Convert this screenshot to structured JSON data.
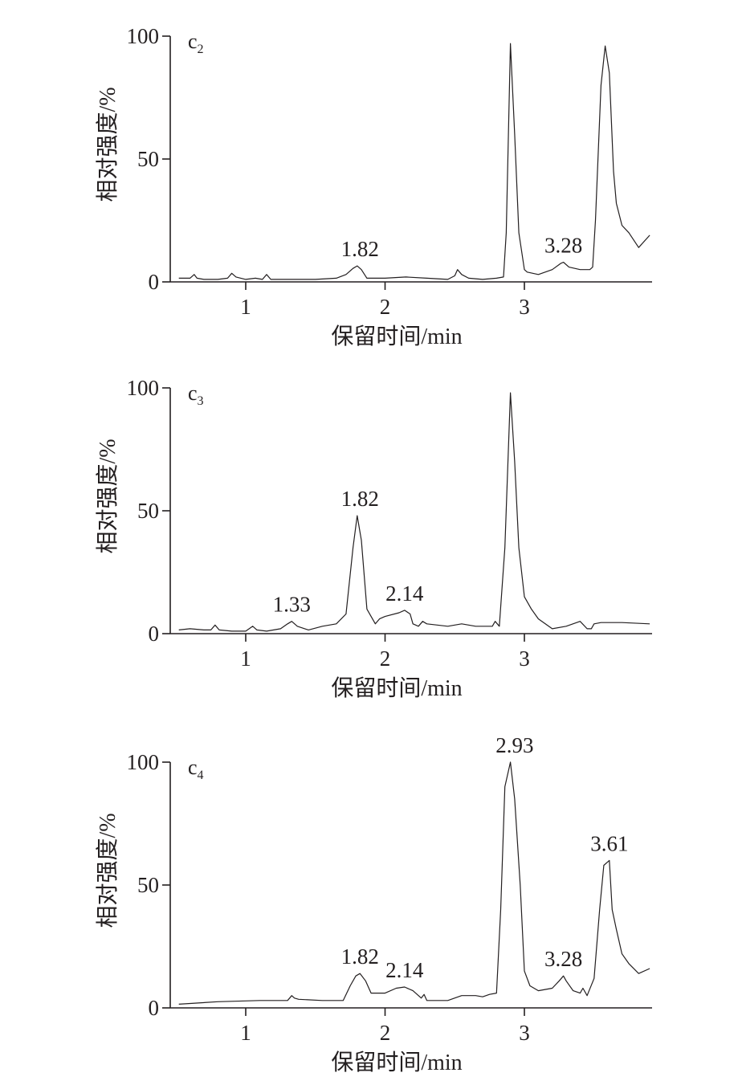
{
  "chart_data": [
    {
      "type": "line",
      "panel": "c",
      "panel_sub": "2",
      "xlabel": "保留时间/min",
      "ylabel": "相对强度/%",
      "xticks": [
        1,
        2,
        3
      ],
      "yticks": [
        0,
        50,
        100
      ],
      "xlim": [
        0.5,
        3.9
      ],
      "ylim": [
        0,
        100
      ],
      "peak_labels": [
        {
          "text": "1.82",
          "x": 1.82,
          "y": 6.5
        },
        {
          "text": "3.28",
          "x": 3.28,
          "y": 8
        }
      ],
      "series": [
        {
          "x": [
            0.52,
            0.6,
            0.63,
            0.65,
            0.7,
            0.8,
            0.87,
            0.9,
            0.93,
            1.0,
            1.07,
            1.12,
            1.15,
            1.18,
            1.3,
            1.5,
            1.65,
            1.72,
            1.77,
            1.8,
            1.83,
            1.87,
            2.0,
            2.15,
            2.3,
            2.45,
            2.5,
            2.52,
            2.55,
            2.6,
            2.7,
            2.8,
            2.85,
            2.87,
            2.9,
            2.93,
            2.96,
            3.0,
            3.02,
            3.1,
            3.2,
            3.26,
            3.28,
            3.32,
            3.4,
            3.47,
            3.49,
            3.51,
            3.55,
            3.58,
            3.61,
            3.64,
            3.66,
            3.7,
            3.75,
            3.82,
            3.9
          ],
          "y": [
            1.5,
            1.5,
            3,
            1.5,
            1,
            1,
            1.5,
            3.5,
            2,
            1,
            1.5,
            1,
            3,
            1,
            1,
            1,
            1.5,
            3,
            5.5,
            6.5,
            5,
            1.5,
            1.5,
            2,
            1.5,
            1,
            2.5,
            5,
            3,
            1.5,
            1,
            1.5,
            2,
            20,
            97,
            60,
            20,
            5,
            4,
            3,
            5,
            7.5,
            8,
            6,
            5,
            5,
            6,
            25,
            80,
            96,
            85,
            45,
            32,
            23,
            20,
            14,
            19
          ]
        }
      ]
    },
    {
      "type": "line",
      "panel": "c",
      "panel_sub": "3",
      "xlabel": "保留时间/min",
      "ylabel": "相对强度/%",
      "xticks": [
        1,
        2,
        3
      ],
      "yticks": [
        0,
        50,
        100
      ],
      "xlim": [
        0.5,
        3.9
      ],
      "ylim": [
        0,
        100
      ],
      "peak_labels": [
        {
          "text": "1.33",
          "x": 1.33,
          "y": 5
        },
        {
          "text": "1.82",
          "x": 1.82,
          "y": 48
        },
        {
          "text": "2.14",
          "x": 2.14,
          "y": 9.5
        }
      ],
      "series": [
        {
          "x": [
            0.52,
            0.6,
            0.7,
            0.75,
            0.78,
            0.81,
            0.9,
            1.0,
            1.05,
            1.08,
            1.15,
            1.25,
            1.3,
            1.33,
            1.37,
            1.45,
            1.55,
            1.65,
            1.72,
            1.77,
            1.8,
            1.83,
            1.87,
            1.9,
            1.93,
            1.96,
            2.0,
            2.1,
            2.14,
            2.18,
            2.2,
            2.24,
            2.27,
            2.3,
            2.45,
            2.55,
            2.65,
            2.77,
            2.79,
            2.82,
            2.86,
            2.9,
            2.93,
            2.96,
            3.0,
            3.05,
            3.1,
            3.2,
            3.3,
            3.4,
            3.45,
            3.48,
            3.5,
            3.55,
            3.7,
            3.9
          ],
          "y": [
            1.5,
            2,
            1.5,
            1.5,
            3.5,
            1.5,
            1,
            1,
            3,
            1.5,
            1,
            2,
            4,
            5,
            3,
            1.5,
            3,
            4,
            8,
            35,
            48,
            38,
            10,
            7,
            4,
            6,
            7,
            8.5,
            9.5,
            8,
            4,
            3,
            5,
            4,
            3,
            4,
            3,
            3,
            5,
            3,
            35,
            98,
            70,
            35,
            15,
            10,
            6,
            2,
            3,
            5,
            2,
            2,
            4,
            4.5,
            4.5,
            4
          ]
        }
      ]
    },
    {
      "type": "line",
      "panel": "c",
      "panel_sub": "4",
      "xlabel": "保留时间/min",
      "ylabel": "相对强度/%",
      "xticks": [
        1,
        2,
        3
      ],
      "yticks": [
        0,
        50,
        100
      ],
      "xlim": [
        0.5,
        3.9
      ],
      "ylim": [
        0,
        100
      ],
      "peak_labels": [
        {
          "text": "1.82",
          "x": 1.82,
          "y": 14
        },
        {
          "text": "2.14",
          "x": 2.14,
          "y": 8.5
        },
        {
          "text": "2.93",
          "x": 2.93,
          "y": 100
        },
        {
          "text": "3.28",
          "x": 3.28,
          "y": 13
        },
        {
          "text": "3.61",
          "x": 3.61,
          "y": 60
        }
      ],
      "series": [
        {
          "x": [
            0.52,
            0.8,
            1.1,
            1.3,
            1.33,
            1.35,
            1.38,
            1.55,
            1.7,
            1.75,
            1.79,
            1.82,
            1.86,
            1.9,
            2.0,
            2.08,
            2.14,
            2.2,
            2.26,
            2.28,
            2.3,
            2.35,
            2.45,
            2.55,
            2.65,
            2.7,
            2.75,
            2.8,
            2.83,
            2.86,
            2.9,
            2.93,
            2.97,
            3.0,
            3.04,
            3.1,
            3.2,
            3.25,
            3.28,
            3.3,
            3.35,
            3.4,
            3.42,
            3.45,
            3.5,
            3.54,
            3.57,
            3.61,
            3.63,
            3.66,
            3.7,
            3.75,
            3.82,
            3.9
          ],
          "y": [
            1.5,
            2.5,
            3,
            3,
            5,
            4,
            3.5,
            3,
            3,
            9,
            13,
            14,
            11,
            6,
            6,
            8,
            8.5,
            7,
            4,
            5.5,
            3,
            3,
            3,
            5,
            5,
            4.5,
            5.5,
            6,
            40,
            90,
            100,
            85,
            50,
            15,
            9,
            7,
            8,
            11,
            13,
            11,
            7,
            6,
            8,
            5,
            12,
            40,
            58,
            60,
            40,
            32,
            22,
            18,
            14,
            16
          ]
        }
      ]
    }
  ]
}
